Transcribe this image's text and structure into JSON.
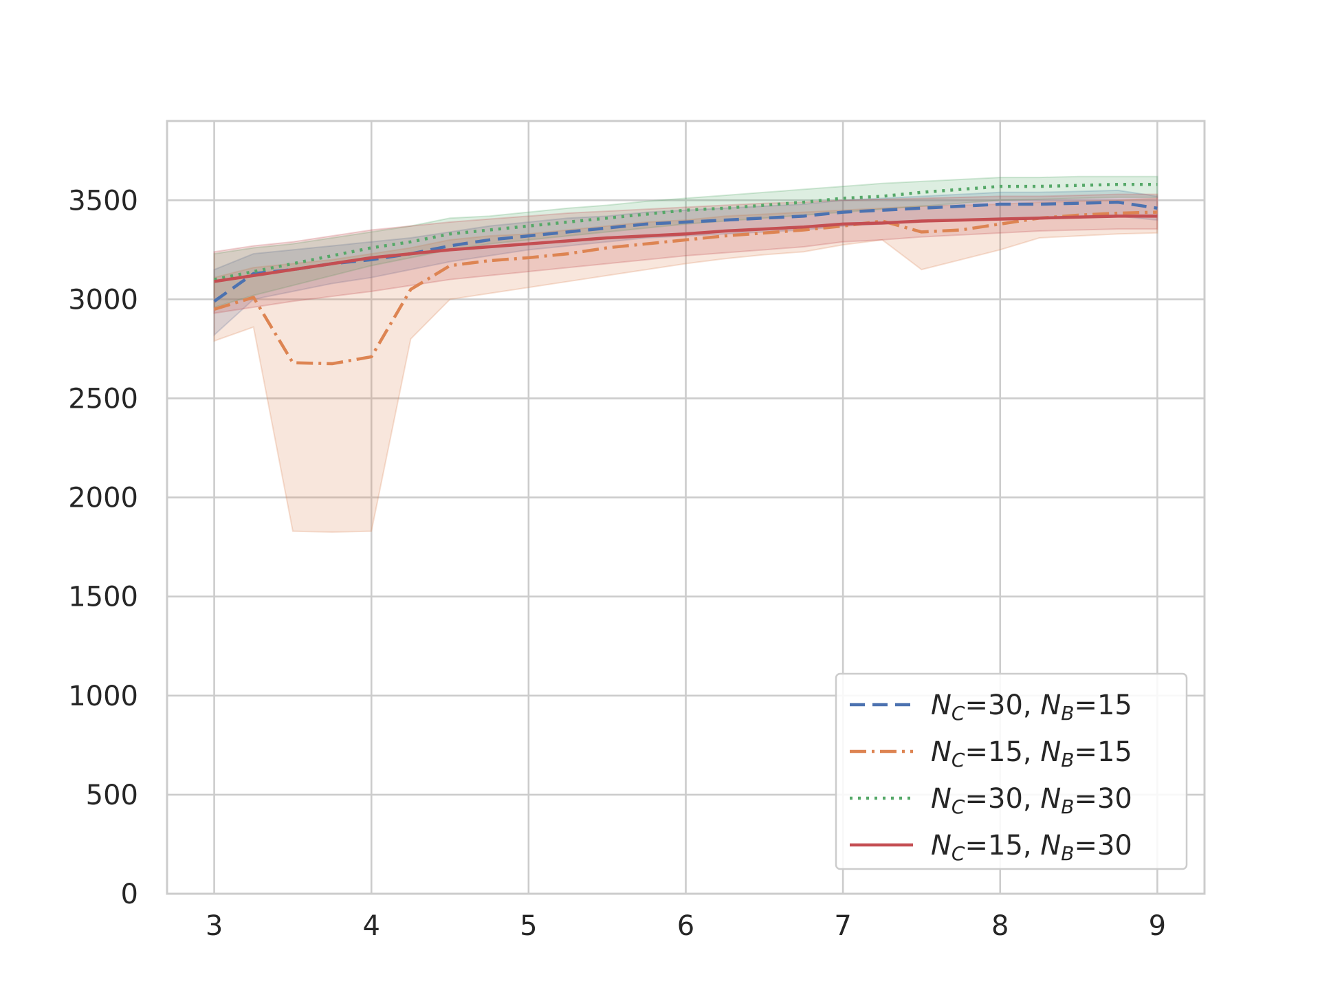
{
  "chart_data": {
    "type": "line",
    "title": "",
    "xlabel": "",
    "ylabel": "",
    "xlim": [
      2.7,
      9.3
    ],
    "ylim": [
      0,
      3900
    ],
    "xticks": [
      3,
      4,
      5,
      6,
      7,
      8,
      9
    ],
    "yticks": [
      0,
      500,
      1000,
      1500,
      2000,
      2500,
      3000,
      3500
    ],
    "grid": true,
    "legend_position": "lower-right",
    "x": [
      3,
      3.25,
      3.5,
      3.75,
      4,
      4.25,
      4.5,
      4.75,
      5,
      5.25,
      5.5,
      5.75,
      6,
      6.25,
      6.5,
      6.75,
      7,
      7.25,
      7.5,
      7.75,
      8,
      8.25,
      8.5,
      8.75,
      9
    ],
    "series": [
      {
        "name_main": "N",
        "name_sub1": "C",
        "name_mid": "=30, ",
        "name_main2": "N",
        "name_sub2": "B",
        "name_end": "=15",
        "color": "#4c72b0",
        "dash": "22,11",
        "values": [
          2990,
          3130,
          3150,
          3180,
          3200,
          3230,
          3270,
          3300,
          3320,
          3340,
          3360,
          3380,
          3390,
          3400,
          3410,
          3420,
          3440,
          3450,
          3460,
          3470,
          3480,
          3480,
          3485,
          3490,
          3460
        ],
        "lower": [
          2820,
          3000,
          3040,
          3080,
          3110,
          3150,
          3190,
          3220,
          3250,
          3270,
          3290,
          3310,
          3320,
          3330,
          3340,
          3350,
          3370,
          3380,
          3390,
          3400,
          3410,
          3410,
          3415,
          3420,
          3400
        ],
        "upper": [
          3150,
          3230,
          3250,
          3270,
          3290,
          3310,
          3340,
          3370,
          3390,
          3410,
          3420,
          3440,
          3450,
          3460,
          3470,
          3480,
          3500,
          3510,
          3520,
          3530,
          3540,
          3540,
          3545,
          3550,
          3520
        ]
      },
      {
        "name_main": "N",
        "name_sub1": "C",
        "name_mid": "=15, ",
        "name_main2": "N",
        "name_sub2": "B",
        "name_end": "=15",
        "color": "#dd8452",
        "dash": "24,8,4,8",
        "values": [
          2950,
          3010,
          2680,
          2675,
          2710,
          3050,
          3170,
          3195,
          3210,
          3230,
          3260,
          3280,
          3300,
          3320,
          3335,
          3350,
          3370,
          3395,
          3340,
          3350,
          3380,
          3410,
          3425,
          3435,
          3440
        ],
        "lower": [
          2790,
          2860,
          1830,
          1825,
          1830,
          2800,
          3000,
          3030,
          3060,
          3090,
          3120,
          3150,
          3180,
          3205,
          3225,
          3240,
          3275,
          3300,
          3150,
          3200,
          3250,
          3310,
          3320,
          3330,
          3335
        ],
        "upper": [
          3110,
          3160,
          3180,
          3200,
          3230,
          3260,
          3300,
          3320,
          3330,
          3350,
          3370,
          3390,
          3400,
          3420,
          3430,
          3440,
          3450,
          3460,
          3470,
          3475,
          3480,
          3490,
          3495,
          3500,
          3510
        ]
      },
      {
        "name_main": "N",
        "name_sub1": "C",
        "name_mid": "=30, ",
        "name_main2": "N",
        "name_sub2": "B",
        "name_end": "=30",
        "color": "#55a868",
        "dash": "4,8",
        "values": [
          3100,
          3140,
          3180,
          3220,
          3260,
          3290,
          3330,
          3350,
          3370,
          3390,
          3410,
          3430,
          3450,
          3460,
          3475,
          3490,
          3510,
          3520,
          3540,
          3555,
          3570,
          3570,
          3575,
          3580,
          3580
        ],
        "lower": [
          2960,
          3020,
          3070,
          3120,
          3170,
          3210,
          3250,
          3280,
          3300,
          3320,
          3340,
          3360,
          3380,
          3395,
          3410,
          3425,
          3440,
          3455,
          3470,
          3485,
          3500,
          3505,
          3510,
          3515,
          3515
        ],
        "upper": [
          3230,
          3260,
          3280,
          3310,
          3340,
          3370,
          3410,
          3420,
          3440,
          3460,
          3475,
          3495,
          3510,
          3525,
          3540,
          3555,
          3570,
          3585,
          3595,
          3605,
          3615,
          3615,
          3620,
          3620,
          3620
        ]
      },
      {
        "name_main": "N",
        "name_sub1": "C",
        "name_mid": "=15, ",
        "name_main2": "N",
        "name_sub2": "B",
        "name_end": "=30",
        "color": "#c44e52",
        "dash": "",
        "values": [
          3090,
          3120,
          3150,
          3180,
          3210,
          3230,
          3250,
          3265,
          3280,
          3295,
          3310,
          3320,
          3330,
          3345,
          3355,
          3365,
          3380,
          3385,
          3395,
          3400,
          3405,
          3410,
          3415,
          3420,
          3420
        ],
        "lower": [
          2930,
          2960,
          2990,
          3015,
          3040,
          3070,
          3100,
          3120,
          3140,
          3160,
          3180,
          3200,
          3220,
          3235,
          3250,
          3265,
          3290,
          3300,
          3315,
          3325,
          3335,
          3345,
          3350,
          3355,
          3355
        ],
        "upper": [
          3240,
          3270,
          3290,
          3320,
          3350,
          3370,
          3390,
          3405,
          3420,
          3435,
          3445,
          3455,
          3465,
          3475,
          3485,
          3490,
          3500,
          3505,
          3510,
          3515,
          3520,
          3520,
          3525,
          3530,
          3530
        ]
      }
    ]
  }
}
